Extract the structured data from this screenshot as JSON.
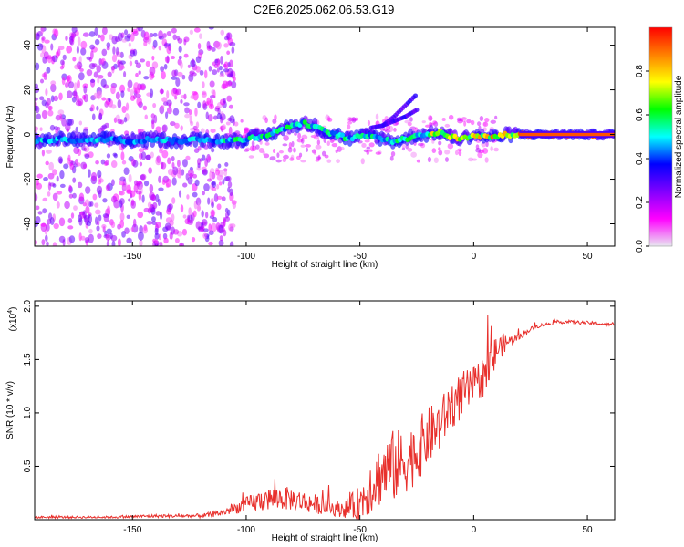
{
  "title": "C2E6.2025.062.06.53.G19",
  "chart_data": [
    {
      "type": "heatmap",
      "name": "spectrogram",
      "xlabel": "Height of straight line (km)",
      "ylabel": "Frequency (Hz)",
      "xlim": [
        -193,
        62
      ],
      "ylim": [
        -50,
        48
      ],
      "xticks": [
        -150,
        -100,
        -50,
        0,
        50
      ],
      "xtick_labels": [
        "-150",
        "-100",
        "-50",
        "0",
        "50"
      ],
      "yticks": [
        -40,
        -20,
        0,
        20,
        40
      ],
      "ytick_labels": [
        "-40",
        "-20",
        "0",
        "20",
        "40"
      ],
      "ridge": {
        "x": [
          -193,
          -180,
          -170,
          -160,
          -150,
          -140,
          -130,
          -120,
          -110,
          -100,
          -95,
          -90,
          -85,
          -80,
          -75,
          -70,
          -65,
          -60,
          -55,
          -50,
          -45,
          -40,
          -35,
          -30,
          -25,
          -20,
          -15,
          -10,
          -5,
          0,
          5,
          10,
          15,
          20,
          25,
          30,
          40,
          50,
          62
        ],
        "y": [
          -3,
          -2,
          -3,
          -2,
          -3,
          -2,
          -3,
          -2,
          -3,
          -2,
          -1,
          0,
          2,
          4,
          5,
          4,
          1,
          0,
          -2,
          -1,
          0,
          -2,
          -3,
          -2,
          0,
          0,
          1,
          -1,
          -2,
          0,
          -1,
          -1,
          0,
          0,
          0,
          0,
          0,
          0,
          0
        ]
      },
      "branches": [
        {
          "x": [
            -40,
            -35,
            -30,
            -25
          ],
          "y": [
            4,
            8,
            13,
            18
          ]
        },
        {
          "x": [
            -45,
            -40,
            -35,
            -30,
            -25
          ],
          "y": [
            3,
            4,
            6,
            8,
            11
          ]
        }
      ],
      "scatter_region_x": [
        -193,
        -105
      ],
      "colorbar": {
        "label": "Normalized spectral amplitude",
        "range": [
          0.0,
          1.0
        ],
        "ticks": [
          0.0,
          0.2,
          0.4,
          0.6,
          0.8
        ],
        "tick_labels": [
          "0.0",
          "0.2",
          "0.4",
          "0.6",
          "0.8"
        ],
        "colormap": [
          "#e8e8f0",
          "#ff00ff",
          "#8000ff",
          "#0000ff",
          "#00ffff",
          "#00ff00",
          "#ffff00",
          "#ff8000",
          "#ff0000"
        ]
      }
    },
    {
      "type": "line",
      "name": "snr",
      "xlabel": "Height of straight line (km)",
      "ylabel": "SNR (10 * v/v)",
      "y_multiplier": "(x10",
      "y_multiplier_exp": "4",
      "y_multiplier_close": ")",
      "xlim": [
        -193,
        62
      ],
      "ylim": [
        0,
        2.05
      ],
      "xticks": [
        -150,
        -100,
        -50,
        0,
        50
      ],
      "xtick_labels": [
        "-150",
        "-100",
        "-50",
        "0",
        "50"
      ],
      "yticks": [
        0.5,
        1.0,
        1.5,
        2.0
      ],
      "ytick_labels": [
        "0.5",
        "1.0",
        "1.5",
        "2.0"
      ],
      "color": "#e8302c",
      "series": [
        {
          "name": "SNR envelope",
          "x": [
            -193,
            -180,
            -160,
            -140,
            -130,
            -120,
            -115,
            -110,
            -105,
            -100,
            -95,
            -90,
            -85,
            -80,
            -75,
            -70,
            -65,
            -60,
            -55,
            -50,
            -45,
            -40,
            -35,
            -30,
            -25,
            -20,
            -15,
            -10,
            -5,
            0,
            5,
            8,
            10,
            15,
            20,
            25,
            30,
            40,
            50,
            62
          ],
          "base": [
            0.02,
            0.02,
            0.02,
            0.03,
            0.03,
            0.03,
            0.04,
            0.06,
            0.09,
            0.12,
            0.14,
            0.16,
            0.17,
            0.16,
            0.14,
            0.12,
            0.1,
            0.08,
            0.08,
            0.1,
            0.25,
            0.35,
            0.4,
            0.45,
            0.55,
            0.7,
            0.8,
            1.0,
            1.1,
            1.2,
            1.3,
            1.4,
            1.55,
            1.65,
            1.7,
            1.78,
            1.82,
            1.85,
            1.84,
            1.82
          ],
          "amp": [
            0.02,
            0.02,
            0.02,
            0.03,
            0.03,
            0.04,
            0.05,
            0.07,
            0.1,
            0.14,
            0.2,
            0.22,
            0.22,
            0.22,
            0.2,
            0.18,
            0.16,
            0.14,
            0.2,
            0.35,
            0.55,
            0.6,
            0.7,
            0.6,
            0.6,
            0.55,
            0.5,
            0.45,
            0.45,
            0.35,
            0.4,
            0.4,
            0.3,
            0.12,
            0.06,
            0.04,
            0.03,
            0.03,
            0.03,
            0.03
          ]
        }
      ]
    }
  ]
}
